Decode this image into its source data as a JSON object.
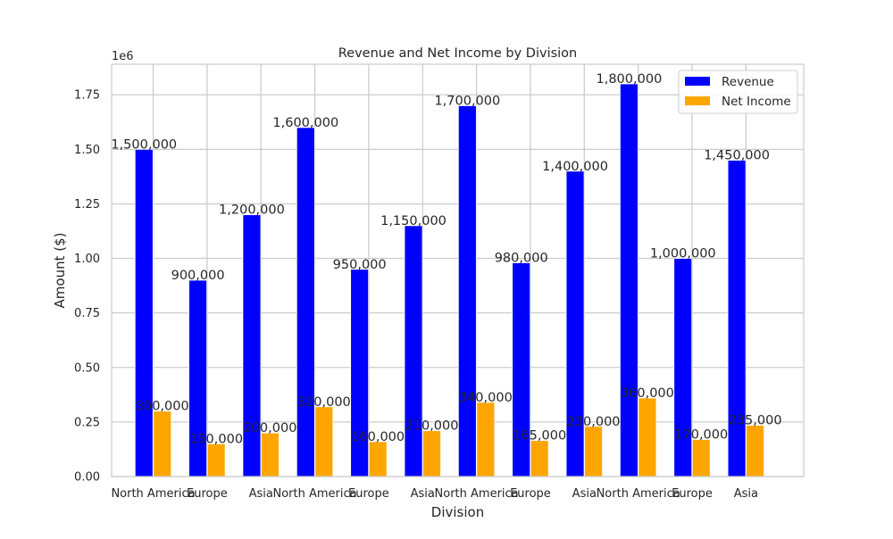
{
  "chart_data": {
    "type": "bar",
    "title": "Revenue and Net Income by Division",
    "xlabel": "Division",
    "ylabel": "Amount ($)",
    "y_offset_label": "1e6",
    "categories": [
      "North America",
      "Europe",
      "Asia",
      "North America",
      "Europe",
      "Asia",
      "North America",
      "Europe",
      "Asia",
      "North America",
      "Europe",
      "Asia"
    ],
    "series": [
      {
        "name": "Revenue",
        "color": "#0000ff",
        "values": [
          1500000,
          900000,
          1200000,
          1600000,
          950000,
          1150000,
          1700000,
          980000,
          1400000,
          1800000,
          1000000,
          1450000
        ],
        "labels": [
          "1,500,000",
          "900,000",
          "1,200,000",
          "1,600,000",
          "950,000",
          "1,150,000",
          "1,700,000",
          "980,000",
          "1,400,000",
          "1,800,000",
          "1,000,000",
          "1,450,000"
        ]
      },
      {
        "name": "Net Income",
        "color": "#ffa500",
        "values": [
          300000,
          150000,
          200000,
          320000,
          160000,
          210000,
          340000,
          165000,
          230000,
          360000,
          170000,
          235000
        ],
        "labels": [
          "300,000",
          "150,000",
          "200,000",
          "320,000",
          "160,000",
          "210,000",
          "340,000",
          "165,000",
          "230,000",
          "360,000",
          "170,000",
          "235,000"
        ]
      }
    ],
    "y_ticks": [
      {
        "value": 0,
        "label": "0.00"
      },
      {
        "value": 250000,
        "label": "0.25"
      },
      {
        "value": 500000,
        "label": "0.50"
      },
      {
        "value": 750000,
        "label": "0.75"
      },
      {
        "value": 1000000,
        "label": "1.00"
      },
      {
        "value": 1250000,
        "label": "1.25"
      },
      {
        "value": 1500000,
        "label": "1.50"
      },
      {
        "value": 1750000,
        "label": "1.75"
      }
    ],
    "ylim": [
      0,
      1890000
    ],
    "grid": true,
    "legend_position": "top-right"
  }
}
